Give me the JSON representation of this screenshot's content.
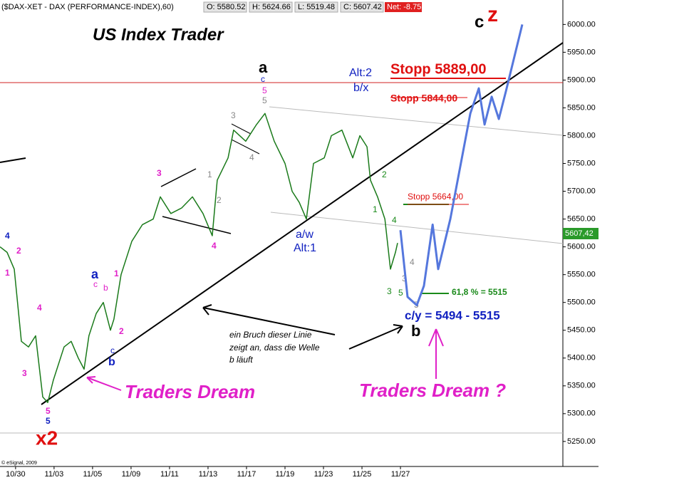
{
  "chart_data": {
    "type": "line",
    "title": "($DAX-XET - DAX (PERFORMANCE-INDEX),60)",
    "readouts": [
      "O: 5580.52",
      "H: 5624.66",
      "L: 5519.48",
      "C: 5607.42",
      "Net: -8.75"
    ],
    "last_price_label": "5607,42",
    "annotations": [
      "US Index Trader",
      "c",
      "z",
      "Stopp 5889,00",
      "Stopp 5844,00",
      "Stopp 5664,00",
      "61,8 % = 5515",
      "c/y = 5494 - 5515",
      "b",
      "Traders Dream ?",
      "Traders Dream",
      "ein Bruch dieser Linie",
      "zeigt an, dass die Welle",
      "b läuft",
      "a/w",
      "Alt:1",
      "Alt:2",
      "b/x",
      "a",
      "x2",
      "c",
      "5",
      "5",
      "4",
      "2",
      "1",
      "4",
      "3",
      "5",
      "5",
      "a",
      "c",
      "b",
      "1",
      "2",
      "c",
      "b",
      "3",
      "4",
      "3",
      "4",
      "1",
      "2",
      "2",
      "1",
      "4",
      "3",
      "5",
      "5",
      "4",
      "3",
      "© eSignal, 2009"
    ],
    "series": [
      {
        "color": "#1a7a1a",
        "x": [
          -0.81,
          -0.44,
          -0.07,
          0.3,
          0.67,
          1.04,
          1.41,
          1.67,
          1.96,
          2.52,
          2.89,
          3.26,
          3.56,
          3.81,
          4.19,
          4.56,
          4.93,
          5.11,
          5.48,
          6.04,
          6.59,
          7.15,
          7.52,
          8.07,
          8.63,
          9.19,
          9.74,
          10.22,
          10.48,
          11.04,
          11.33,
          11.96,
          12.52,
          12.96,
          13.44,
          14.0,
          14.37,
          14.74,
          15.11,
          15.48,
          16.04,
          16.41,
          16.96,
          17.52,
          17.89,
          18.26,
          18.44,
          18.81,
          19.19,
          19.48,
          19.74,
          19.85
        ],
        "values": [
          5600,
          5590,
          5560,
          5430,
          5420,
          5440,
          5330,
          5320,
          5360,
          5420,
          5430,
          5400,
          5380,
          5440,
          5480,
          5500,
          5450,
          5470,
          5550,
          5610,
          5640,
          5650,
          5690,
          5660,
          5670,
          5690,
          5660,
          5620,
          5720,
          5760,
          5810,
          5790,
          5820,
          5840,
          5790,
          5750,
          5700,
          5680,
          5650,
          5750,
          5760,
          5800,
          5810,
          5760,
          5800,
          5780,
          5720,
          5690,
          5650,
          5560,
          5590,
          5607
        ]
      },
      {
        "color": "#5577dd",
        "x": [
          20.0,
          20.37,
          20.85,
          21.22,
          21.67,
          21.96,
          22.59,
          23.63,
          24.07,
          24.37,
          24.74,
          25.11,
          25.48,
          26.33
        ],
        "values": [
          5630,
          5510,
          5495,
          5530,
          5640,
          5560,
          5650,
          5840,
          5885,
          5820,
          5870,
          5830,
          5880,
          6000
        ]
      }
    ],
    "xlim": [
      -0.81,
      28.44
    ],
    "xticks": [
      {
        "value": 0,
        "label": "10/30"
      },
      {
        "value": 2,
        "label": "11/03"
      },
      {
        "value": 4,
        "label": "11/05"
      },
      {
        "value": 6,
        "label": "11/09"
      },
      {
        "value": 8,
        "label": "11/11"
      },
      {
        "value": 10,
        "label": "11/13"
      },
      {
        "value": 12,
        "label": "11/17"
      },
      {
        "value": 14,
        "label": "11/19"
      },
      {
        "value": 16,
        "label": "11/23"
      },
      {
        "value": 18,
        "label": "11/25"
      },
      {
        "value": 20,
        "label": "11/27"
      }
    ],
    "ylim": [
      5205,
      6044
    ],
    "yticks": [
      {
        "value": 5250,
        "label": "5250.00"
      },
      {
        "value": 5300,
        "label": "5300.00"
      },
      {
        "value": 5350,
        "label": "5350.00"
      },
      {
        "value": 5400,
        "label": "5400.00"
      },
      {
        "value": 5450,
        "label": "5450.00"
      },
      {
        "value": 5500,
        "label": "5500.00"
      },
      {
        "value": 5550,
        "label": "5550.00"
      },
      {
        "value": 5600,
        "label": "5600.00"
      },
      {
        "value": 5650,
        "label": "5650.00"
      },
      {
        "value": 5700,
        "label": "5700.00"
      },
      {
        "value": 5750,
        "label": "5750.00"
      },
      {
        "value": 5800,
        "label": "5800.00"
      },
      {
        "value": 5850,
        "label": "5850.00"
      },
      {
        "value": 5900,
        "label": "5900.00"
      },
      {
        "value": 5950,
        "label": "5950.00"
      },
      {
        "value": 6000,
        "label": "6000.00"
      }
    ]
  }
}
